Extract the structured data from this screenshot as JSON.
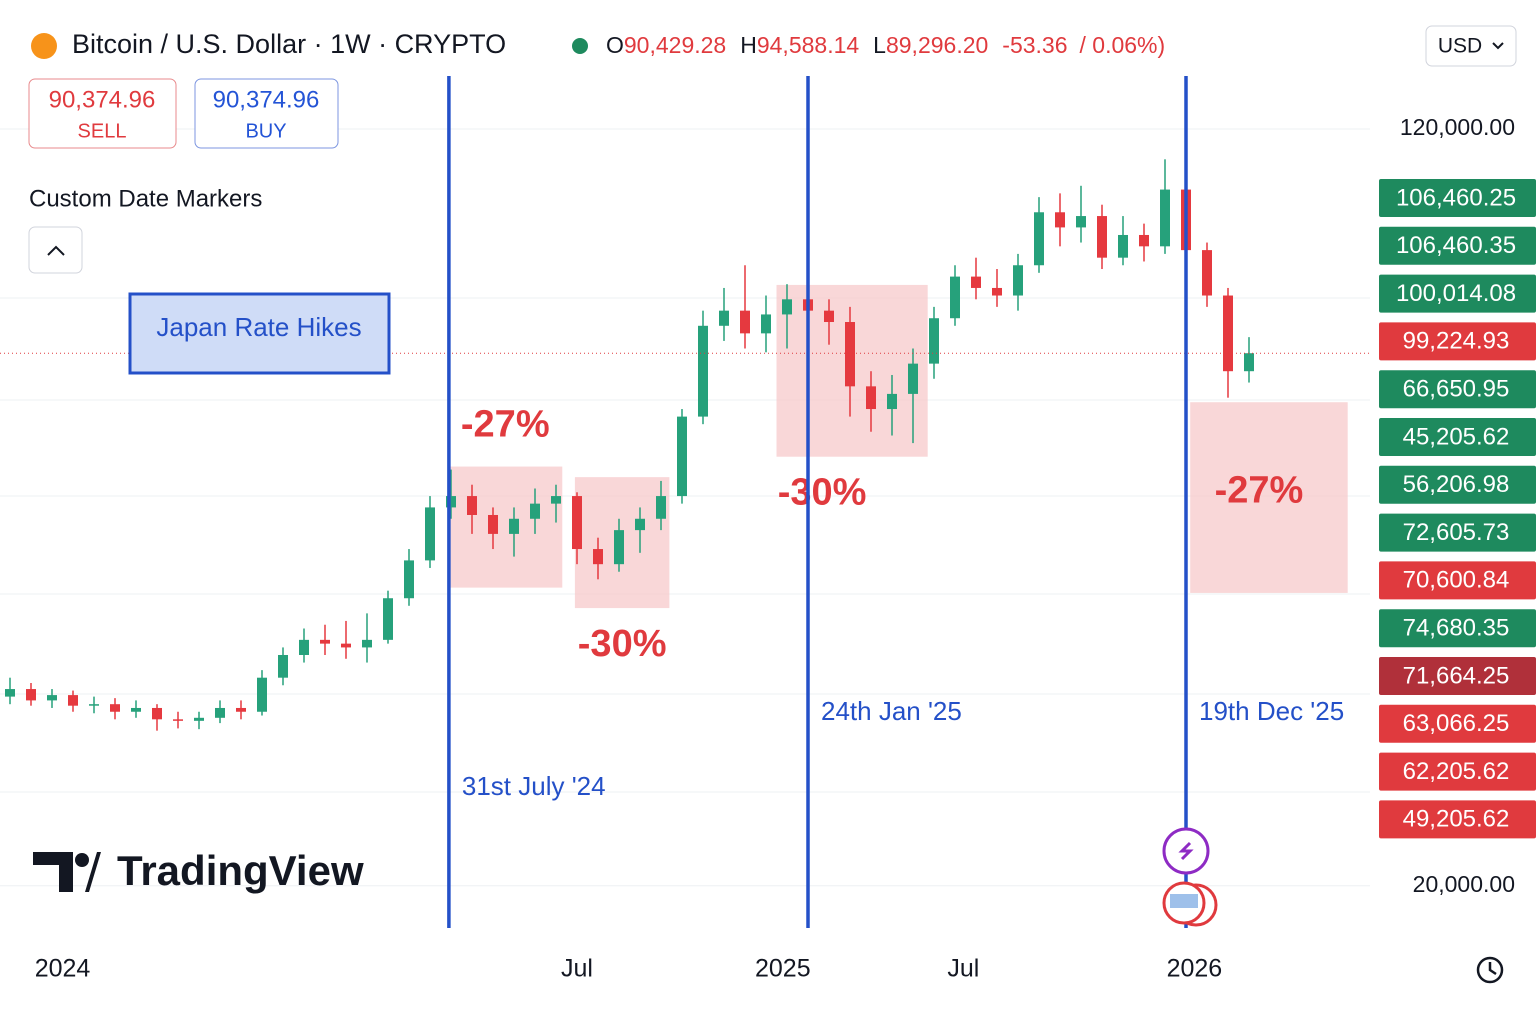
{
  "chart_data": {
    "type": "candlestick",
    "title": "Bitcoin / U.S. Dollar · 1W · CRYPTO",
    "ohlc_header": {
      "o_label": "O",
      "o": "90,429.28",
      "h_label": "H",
      "h": "94,588.14",
      "l_label": "L",
      "l": "89,296.20",
      "change": "-53.36",
      "change_pct": "/ 0.06%)"
    },
    "sell": {
      "price": "90,374.96",
      "label": "SELL"
    },
    "buy": {
      "price": "90,374.96",
      "label": "BUY"
    },
    "currency": "USD",
    "panel_title": "Custom Date Markers",
    "legend_box": "Japan Rate Hikes",
    "brand": "TradingView",
    "up_color": "#26a17b",
    "down_color": "#e5393f",
    "ylim": [
      13500,
      127800
    ],
    "yticks": [
      {
        "value": 120000,
        "label": "120,000.00"
      },
      {
        "value": 20000,
        "label": "20,000.00"
      }
    ],
    "candles": [
      {
        "o": 45000,
        "h": 47500,
        "l": 44000,
        "c": 46000
      },
      {
        "o": 46000,
        "h": 46800,
        "l": 43800,
        "c": 44500
      },
      {
        "o": 44500,
        "h": 46000,
        "l": 43500,
        "c": 45200
      },
      {
        "o": 45200,
        "h": 45800,
        "l": 43000,
        "c": 43800
      },
      {
        "o": 43800,
        "h": 45000,
        "l": 42800,
        "c": 44000
      },
      {
        "o": 44000,
        "h": 44800,
        "l": 42000,
        "c": 43000
      },
      {
        "o": 43000,
        "h": 44500,
        "l": 42200,
        "c": 43500
      },
      {
        "o": 43500,
        "h": 44000,
        "l": 40500,
        "c": 42000
      },
      {
        "o": 42000,
        "h": 43000,
        "l": 40800,
        "c": 41800
      },
      {
        "o": 41800,
        "h": 43000,
        "l": 40700,
        "c": 42200
      },
      {
        "o": 42200,
        "h": 44500,
        "l": 41500,
        "c": 43500
      },
      {
        "o": 43500,
        "h": 44500,
        "l": 42000,
        "c": 43000
      },
      {
        "o": 43000,
        "h": 48500,
        "l": 42500,
        "c": 47500
      },
      {
        "o": 47500,
        "h": 51500,
        "l": 46500,
        "c": 50500
      },
      {
        "o": 50500,
        "h": 54000,
        "l": 49500,
        "c": 52500
      },
      {
        "o": 52500,
        "h": 54500,
        "l": 50500,
        "c": 52000
      },
      {
        "o": 52000,
        "h": 55000,
        "l": 50000,
        "c": 51500
      },
      {
        "o": 51500,
        "h": 56000,
        "l": 49500,
        "c": 52500
      },
      {
        "o": 52500,
        "h": 59000,
        "l": 52000,
        "c": 58000
      },
      {
        "o": 58000,
        "h": 64500,
        "l": 57000,
        "c": 63000
      },
      {
        "o": 63000,
        "h": 71500,
        "l": 62000,
        "c": 70000
      },
      {
        "o": 70000,
        "h": 75000,
        "l": 68500,
        "c": 71500
      },
      {
        "o": 71500,
        "h": 73000,
        "l": 66500,
        "c": 69000
      },
      {
        "o": 69000,
        "h": 70000,
        "l": 64500,
        "c": 66500
      },
      {
        "o": 66500,
        "h": 70000,
        "l": 63500,
        "c": 68500
      },
      {
        "o": 68500,
        "h": 72500,
        "l": 66500,
        "c": 70500
      },
      {
        "o": 70500,
        "h": 73000,
        "l": 68000,
        "c": 71500
      },
      {
        "o": 71500,
        "h": 72000,
        "l": 62500,
        "c": 64500
      },
      {
        "o": 64500,
        "h": 66000,
        "l": 60500,
        "c": 62500
      },
      {
        "o": 62500,
        "h": 68500,
        "l": 61500,
        "c": 67000
      },
      {
        "o": 67000,
        "h": 70000,
        "l": 64000,
        "c": 68500
      },
      {
        "o": 68500,
        "h": 73500,
        "l": 67000,
        "c": 71500
      },
      {
        "o": 71500,
        "h": 83000,
        "l": 70500,
        "c": 82000
      },
      {
        "o": 82000,
        "h": 96000,
        "l": 81000,
        "c": 94000
      },
      {
        "o": 94000,
        "h": 99000,
        "l": 92000,
        "c": 96000
      },
      {
        "o": 96000,
        "h": 102000,
        "l": 91000,
        "c": 93000
      },
      {
        "o": 93000,
        "h": 98000,
        "l": 90500,
        "c": 95500
      },
      {
        "o": 95500,
        "h": 99500,
        "l": 91000,
        "c": 97500
      },
      {
        "o": 97500,
        "h": 100500,
        "l": 92500,
        "c": 96000
      },
      {
        "o": 96000,
        "h": 97500,
        "l": 91500,
        "c": 94500
      },
      {
        "o": 94500,
        "h": 96500,
        "l": 82000,
        "c": 86000
      },
      {
        "o": 86000,
        "h": 88000,
        "l": 80000,
        "c": 83000
      },
      {
        "o": 83000,
        "h": 87500,
        "l": 79500,
        "c": 85000
      },
      {
        "o": 85000,
        "h": 91000,
        "l": 78500,
        "c": 89000
      },
      {
        "o": 89000,
        "h": 96500,
        "l": 87000,
        "c": 95000
      },
      {
        "o": 95000,
        "h": 102000,
        "l": 94000,
        "c": 100500
      },
      {
        "o": 100500,
        "h": 103000,
        "l": 97500,
        "c": 99000
      },
      {
        "o": 99000,
        "h": 101500,
        "l": 96500,
        "c": 98000
      },
      {
        "o": 98000,
        "h": 103500,
        "l": 96000,
        "c": 102000
      },
      {
        "o": 102000,
        "h": 111000,
        "l": 101000,
        "c": 109000
      },
      {
        "o": 109000,
        "h": 111500,
        "l": 104500,
        "c": 107000
      },
      {
        "o": 107000,
        "h": 112500,
        "l": 105000,
        "c": 108500
      },
      {
        "o": 108500,
        "h": 110000,
        "l": 101500,
        "c": 103000
      },
      {
        "o": 103000,
        "h": 108500,
        "l": 102000,
        "c": 106000
      },
      {
        "o": 106000,
        "h": 107500,
        "l": 102500,
        "c": 104500
      },
      {
        "o": 104500,
        "h": 116000,
        "l": 103500,
        "c": 112000
      },
      {
        "o": 112000,
        "h": 113000,
        "l": 100500,
        "c": 104000
      },
      {
        "o": 104000,
        "h": 105000,
        "l": 96500,
        "c": 98000
      },
      {
        "o": 98000,
        "h": 99000,
        "l": 84500,
        "c": 88000
      },
      {
        "o": 88000,
        "h": 92500,
        "l": 86500,
        "c": 90374.96
      }
    ],
    "x_labels": [
      {
        "label": "2024",
        "at": 2.5
      },
      {
        "label": "Jul",
        "at": 27
      },
      {
        "label": "2025",
        "at": 36.8
      },
      {
        "label": "Jul",
        "at": 45.4
      },
      {
        "label": "2026",
        "at": 56.4
      }
    ],
    "date_markers": [
      {
        "label": "31st July '24",
        "at": 20.9
      },
      {
        "label": "24th Jan '25",
        "at": 38
      },
      {
        "label": "19th Dec '25",
        "at": 56
      }
    ],
    "drawdowns": [
      {
        "label": "-27%",
        "start": 20.9,
        "end": 26.3,
        "top": 75400,
        "bottom": 59400
      },
      {
        "label": "-30%",
        "start": 26.9,
        "end": 31.4,
        "top": 74000,
        "bottom": 56700
      },
      {
        "label": "-30%",
        "start": 36.5,
        "end": 43.7,
        "top": 99400,
        "bottom": 76700
      },
      {
        "label": "-27%",
        "start": 56.2,
        "end": 63.7,
        "top": 83900,
        "bottom": 58700
      }
    ],
    "price_labels": [
      {
        "label": "106,460.25",
        "color": "#1e8a5e"
      },
      {
        "label": "106,460.35",
        "color": "#1e8a5e"
      },
      {
        "label": "100,014.08",
        "color": "#1e8a5e"
      },
      {
        "label": "99,224.93",
        "color": "#e03a3e"
      },
      {
        "label": "66,650.95",
        "color": "#1e8a5e"
      },
      {
        "label": "45,205.62",
        "color": "#1e8a5e"
      },
      {
        "label": "56,206.98",
        "color": "#1e8a5e"
      },
      {
        "label": "72,605.73",
        "color": "#1e8a5e"
      },
      {
        "label": "70,600.84",
        "color": "#e03a3e"
      },
      {
        "label": "74,680.35",
        "color": "#1e8a5e"
      },
      {
        "label": "71,664.25",
        "color": "#b0303a"
      },
      {
        "label": "63,066.25",
        "color": "#e03a3e"
      },
      {
        "label": "62,205.62",
        "color": "#e03a3e"
      },
      {
        "label": "49,205.62",
        "color": "#e03a3e"
      }
    ]
  }
}
